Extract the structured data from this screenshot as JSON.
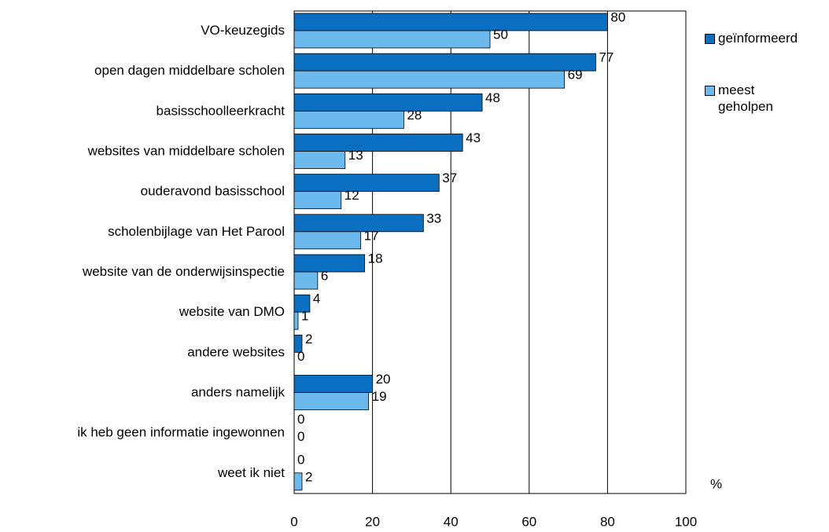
{
  "chart_data": {
    "type": "bar",
    "orientation": "horizontal",
    "categories": [
      "VO-keuzegids",
      "open dagen middelbare scholen",
      "basisschoolleerkracht",
      "websites van middelbare scholen",
      "ouderavond basisschool",
      "scholenbijlage van Het Parool",
      "website van de onderwijsinspectie",
      "website van DMO",
      "andere websites",
      "anders namelijk",
      "ik heb geen informatie ingewonnen",
      "weet ik niet"
    ],
    "series": [
      {
        "name": "geïnformeerd",
        "color": "#0a6fc0",
        "values": [
          80,
          77,
          48,
          43,
          37,
          33,
          18,
          4,
          2,
          20,
          0,
          0
        ]
      },
      {
        "name": "meest geholpen",
        "color": "#6cb9ee",
        "values": [
          50,
          69,
          28,
          13,
          12,
          17,
          6,
          1,
          0,
          19,
          0,
          2
        ]
      }
    ],
    "xlim": [
      0,
      100
    ],
    "xticks": [
      0,
      20,
      40,
      60,
      80,
      100
    ],
    "x_label": "%",
    "grid": true,
    "legend": "right"
  }
}
